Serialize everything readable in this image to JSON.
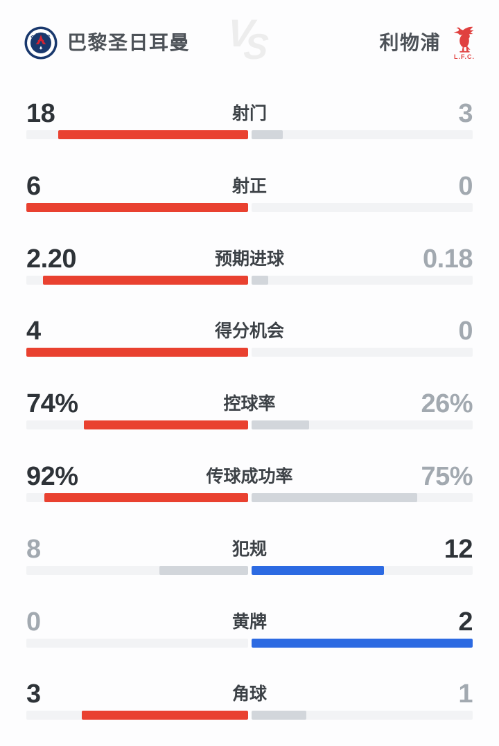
{
  "header": {
    "home_team": {
      "name": "巴黎圣日耳曼",
      "crest": "psg-crest",
      "crest_ring_text": "PARIS"
    },
    "away_team": {
      "name": "利物浦",
      "crest": "liverpool-liver-bird",
      "crest_text": "L.F.C."
    },
    "vs_label": {
      "v": "V",
      "s": "S"
    }
  },
  "colors": {
    "home_bar": "#e94130",
    "away_bar": "#2c6ae2",
    "neutral_bar": "#d2d6db",
    "bar_track": "#f2f3f5",
    "value_leading": "#2e3338",
    "value_trailing": "#a2a9b0",
    "label": "#3c4146",
    "psg_navy": "#19386d",
    "psg_red": "#d42332",
    "liverpool_red": "#e0403f",
    "vs_watermark": "#ededed"
  },
  "stats": {
    "rows": [
      {
        "label": "射门",
        "normalize": "sum",
        "home": {
          "display": "18",
          "value": 18,
          "leading": true
        },
        "away": {
          "display": "3",
          "value": 3,
          "leading": false
        }
      },
      {
        "label": "射正",
        "normalize": "sum",
        "home": {
          "display": "6",
          "value": 6,
          "leading": true
        },
        "away": {
          "display": "0",
          "value": 0,
          "leading": false
        }
      },
      {
        "label": "预期进球",
        "normalize": "sum",
        "home": {
          "display": "2.20",
          "value": 2.2,
          "leading": true
        },
        "away": {
          "display": "0.18",
          "value": 0.18,
          "leading": false
        }
      },
      {
        "label": "得分机会",
        "normalize": "sum",
        "home": {
          "display": "4",
          "value": 4,
          "leading": true
        },
        "away": {
          "display": "0",
          "value": 0,
          "leading": false
        }
      },
      {
        "label": "控球率",
        "normalize": "percent",
        "home": {
          "display": "74%",
          "value": 74,
          "leading": true
        },
        "away": {
          "display": "26%",
          "value": 26,
          "leading": false
        }
      },
      {
        "label": "传球成功率",
        "normalize": "percent",
        "home": {
          "display": "92%",
          "value": 92,
          "leading": true
        },
        "away": {
          "display": "75%",
          "value": 75,
          "leading": false
        }
      },
      {
        "label": "犯规",
        "normalize": "sum",
        "home": {
          "display": "8",
          "value": 8,
          "leading": false
        },
        "away": {
          "display": "12",
          "value": 12,
          "leading": true
        }
      },
      {
        "label": "黄牌",
        "normalize": "sum",
        "home": {
          "display": "0",
          "value": 0,
          "leading": false
        },
        "away": {
          "display": "2",
          "value": 2,
          "leading": true
        }
      },
      {
        "label": "角球",
        "normalize": "sum",
        "home": {
          "display": "3",
          "value": 3,
          "leading": true
        },
        "away": {
          "display": "1",
          "value": 1,
          "leading": false
        }
      }
    ]
  },
  "chart_data": {
    "type": "bar",
    "variant": "paired horizontal comparison bars growing outward from center; leading side colored (home red / away blue), trailing side gray",
    "title": "巴黎圣日耳曼 vs 利物浦",
    "categories": [
      "射门",
      "射正",
      "预期进球",
      "得分机会",
      "控球率",
      "传球成功率",
      "犯规",
      "黄牌",
      "角球"
    ],
    "series": [
      {
        "name": "巴黎圣日耳曼",
        "values": [
          18,
          6,
          2.2,
          4,
          74,
          92,
          8,
          0,
          3
        ]
      },
      {
        "name": "利物浦",
        "values": [
          3,
          0,
          0.18,
          0,
          26,
          75,
          12,
          2,
          1
        ]
      }
    ],
    "percent_categories": [
      "控球率",
      "传球成功率"
    ],
    "leading_side_per_category": [
      "home",
      "home",
      "home",
      "home",
      "home",
      "home",
      "away",
      "away",
      "home"
    ],
    "bar_scaling": "count rows: width = value / (home+away) of half track; percent rows: width = value / 100 of half track",
    "legend_position": "none",
    "grid": false
  }
}
